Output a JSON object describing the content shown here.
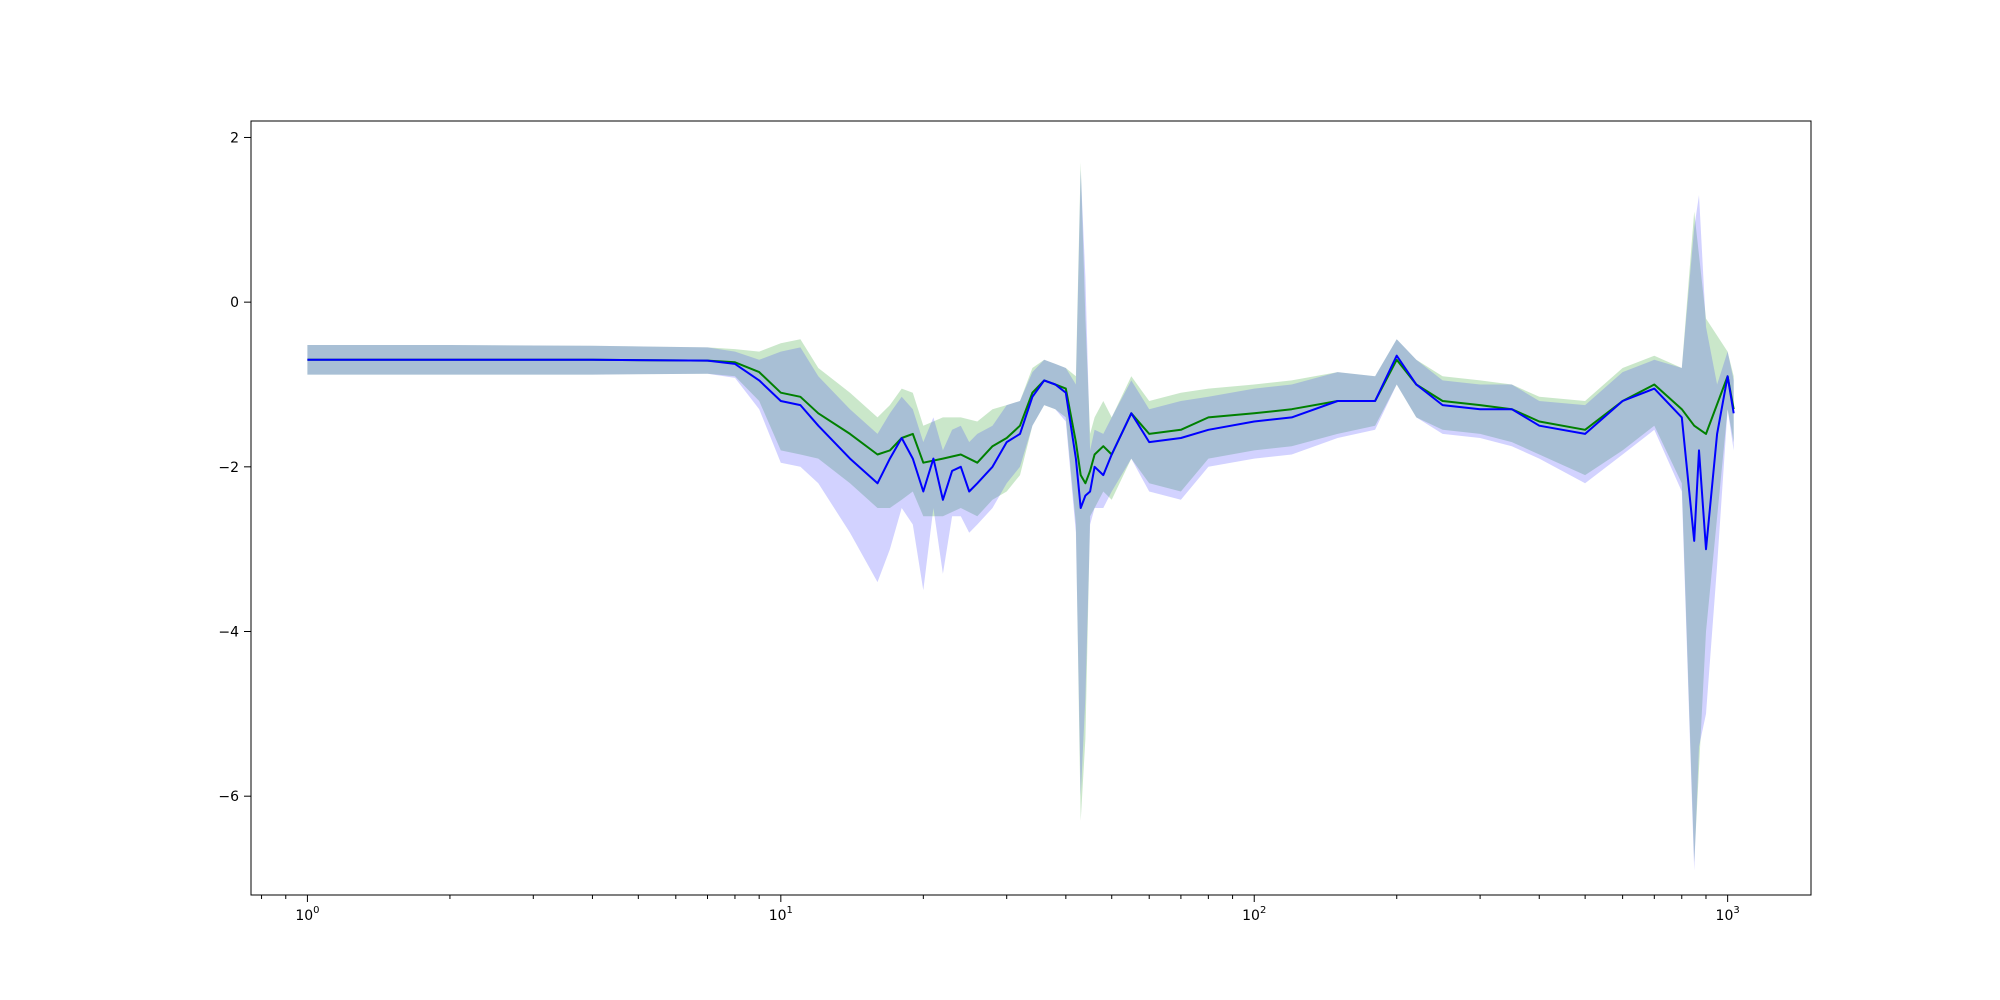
{
  "chart_data": {
    "type": "line",
    "title": "",
    "xlabel": "",
    "ylabel": "",
    "xscale": "log",
    "xlim": [
      0.76,
      1500
    ],
    "ylim": [
      -7.2,
      2.2
    ],
    "grid": false,
    "legend": "none",
    "x_ticks": [
      {
        "value": 1,
        "base": "10",
        "exp": "0"
      },
      {
        "value": 10,
        "base": "10",
        "exp": "1"
      },
      {
        "value": 100,
        "base": "10",
        "exp": "2"
      },
      {
        "value": 1000,
        "base": "10",
        "exp": "3"
      }
    ],
    "y_ticks": [
      {
        "value": 2,
        "label": "2"
      },
      {
        "value": 0,
        "label": "0"
      },
      {
        "value": -2,
        "label": "−2"
      },
      {
        "value": -4,
        "label": "−4"
      },
      {
        "value": -6,
        "label": "−6"
      }
    ],
    "series": [
      {
        "color": "#008000",
        "band_color": "#2ca02c",
        "band_opacity": 0.25,
        "x": [
          1,
          2,
          4,
          7,
          8,
          9,
          10,
          11,
          12,
          14,
          16,
          17,
          18,
          19,
          20,
          22,
          24,
          26,
          28,
          30,
          32,
          34,
          36,
          38,
          40,
          42,
          43,
          44,
          45,
          46,
          48,
          50,
          55,
          60,
          70,
          80,
          100,
          120,
          150,
          180,
          200,
          220,
          250,
          300,
          350,
          400,
          500,
          600,
          700,
          800,
          850,
          900,
          1000,
          1030
        ],
        "y": [
          -0.7,
          -0.7,
          -0.7,
          -0.71,
          -0.73,
          -0.85,
          -1.1,
          -1.15,
          -1.35,
          -1.6,
          -1.85,
          -1.8,
          -1.65,
          -1.6,
          -1.95,
          -1.9,
          -1.85,
          -1.95,
          -1.75,
          -1.65,
          -1.5,
          -1.1,
          -0.95,
          -1.0,
          -1.05,
          -1.7,
          -2.1,
          -2.2,
          -2.05,
          -1.85,
          -1.75,
          -1.85,
          -1.35,
          -1.6,
          -1.55,
          -1.4,
          -1.35,
          -1.3,
          -1.2,
          -1.2,
          -0.7,
          -1.0,
          -1.2,
          -1.25,
          -1.3,
          -1.45,
          -1.55,
          -1.2,
          -1.0,
          -1.3,
          -1.5,
          -1.6,
          -0.9,
          -1.3
        ],
        "upper": [
          -0.52,
          -0.52,
          -0.53,
          -0.55,
          -0.57,
          -0.6,
          -0.5,
          -0.45,
          -0.8,
          -1.1,
          -1.4,
          -1.25,
          -1.05,
          -1.1,
          -1.5,
          -1.4,
          -1.4,
          -1.45,
          -1.3,
          -1.25,
          -1.2,
          -0.8,
          -0.7,
          -0.75,
          -0.8,
          -0.9,
          1.7,
          -0.2,
          -1.6,
          -1.4,
          -1.2,
          -1.4,
          -0.9,
          -1.2,
          -1.1,
          -1.05,
          -1.0,
          -0.95,
          -0.85,
          -0.9,
          -0.45,
          -0.7,
          -0.9,
          -0.95,
          -1.0,
          -1.15,
          -1.2,
          -0.8,
          -0.65,
          -0.8,
          1.1,
          -0.2,
          -0.6,
          -0.9
        ],
        "lower": [
          -0.88,
          -0.88,
          -0.88,
          -0.87,
          -0.9,
          -1.2,
          -1.8,
          -1.85,
          -1.9,
          -2.2,
          -2.5,
          -2.5,
          -2.4,
          -2.3,
          -2.6,
          -2.6,
          -2.5,
          -2.6,
          -2.4,
          -2.3,
          -2.1,
          -1.5,
          -1.25,
          -1.3,
          -1.4,
          -2.7,
          -6.3,
          -5.3,
          -2.6,
          -2.5,
          -2.3,
          -2.4,
          -1.9,
          -2.2,
          -2.3,
          -1.9,
          -1.8,
          -1.75,
          -1.6,
          -1.5,
          -1.0,
          -1.4,
          -1.55,
          -1.6,
          -1.7,
          -1.85,
          -2.1,
          -1.8,
          -1.5,
          -2.2,
          -6.8,
          -4.0,
          -1.3,
          -1.7
        ]
      },
      {
        "color": "#0000ff",
        "band_color": "#3333ff",
        "band_opacity": 0.22,
        "x": [
          1,
          2,
          4,
          7,
          8,
          9,
          10,
          11,
          12,
          14,
          16,
          17,
          18,
          19,
          20,
          21,
          22,
          23,
          24,
          25,
          26,
          28,
          30,
          32,
          34,
          36,
          38,
          40,
          42,
          43,
          44,
          45,
          46,
          48,
          50,
          55,
          60,
          70,
          80,
          100,
          120,
          150,
          180,
          200,
          220,
          250,
          300,
          350,
          400,
          500,
          600,
          700,
          800,
          850,
          870,
          900,
          950,
          1000,
          1030
        ],
        "y": [
          -0.7,
          -0.7,
          -0.7,
          -0.71,
          -0.75,
          -0.95,
          -1.2,
          -1.25,
          -1.5,
          -1.9,
          -2.2,
          -1.9,
          -1.65,
          -1.9,
          -2.3,
          -1.9,
          -2.4,
          -2.05,
          -2.0,
          -2.3,
          -2.2,
          -2.0,
          -1.7,
          -1.6,
          -1.15,
          -0.95,
          -1.0,
          -1.1,
          -1.9,
          -2.5,
          -2.35,
          -2.3,
          -2.0,
          -2.1,
          -1.85,
          -1.35,
          -1.7,
          -1.65,
          -1.55,
          -1.45,
          -1.4,
          -1.2,
          -1.2,
          -0.65,
          -1.0,
          -1.25,
          -1.3,
          -1.3,
          -1.5,
          -1.6,
          -1.2,
          -1.05,
          -1.4,
          -2.9,
          -1.8,
          -3.0,
          -1.6,
          -0.9,
          -1.35
        ],
        "upper": [
          -0.52,
          -0.52,
          -0.53,
          -0.55,
          -0.6,
          -0.7,
          -0.6,
          -0.55,
          -0.9,
          -1.3,
          -1.6,
          -1.35,
          -1.15,
          -1.3,
          -1.7,
          -1.4,
          -1.8,
          -1.55,
          -1.5,
          -1.7,
          -1.6,
          -1.5,
          -1.25,
          -1.2,
          -0.85,
          -0.7,
          -0.75,
          -0.8,
          -1.0,
          1.6,
          0.3,
          -1.8,
          -1.55,
          -1.6,
          -1.4,
          -0.95,
          -1.3,
          -1.2,
          -1.15,
          -1.05,
          -1.0,
          -0.85,
          -0.9,
          -0.45,
          -0.7,
          -0.95,
          -1.0,
          -1.0,
          -1.2,
          -1.25,
          -0.85,
          -0.7,
          -0.8,
          0.9,
          1.3,
          -0.3,
          -1.0,
          -0.6,
          -0.95
        ],
        "lower": [
          -0.88,
          -0.88,
          -0.88,
          -0.87,
          -0.92,
          -1.3,
          -1.95,
          -2.0,
          -2.2,
          -2.8,
          -3.4,
          -3.0,
          -2.5,
          -2.7,
          -3.5,
          -2.5,
          -3.3,
          -2.6,
          -2.6,
          -2.8,
          -2.7,
          -2.5,
          -2.2,
          -2.0,
          -1.5,
          -1.25,
          -1.3,
          -1.45,
          -2.8,
          -6.0,
          -4.8,
          -2.7,
          -2.5,
          -2.5,
          -2.3,
          -1.9,
          -2.3,
          -2.4,
          -2.0,
          -1.9,
          -1.85,
          -1.65,
          -1.55,
          -1.0,
          -1.4,
          -1.6,
          -1.65,
          -1.75,
          -1.9,
          -2.2,
          -1.85,
          -1.55,
          -2.3,
          -6.9,
          -5.4,
          -5.0,
          -3.2,
          -1.3,
          -1.8
        ]
      }
    ]
  }
}
